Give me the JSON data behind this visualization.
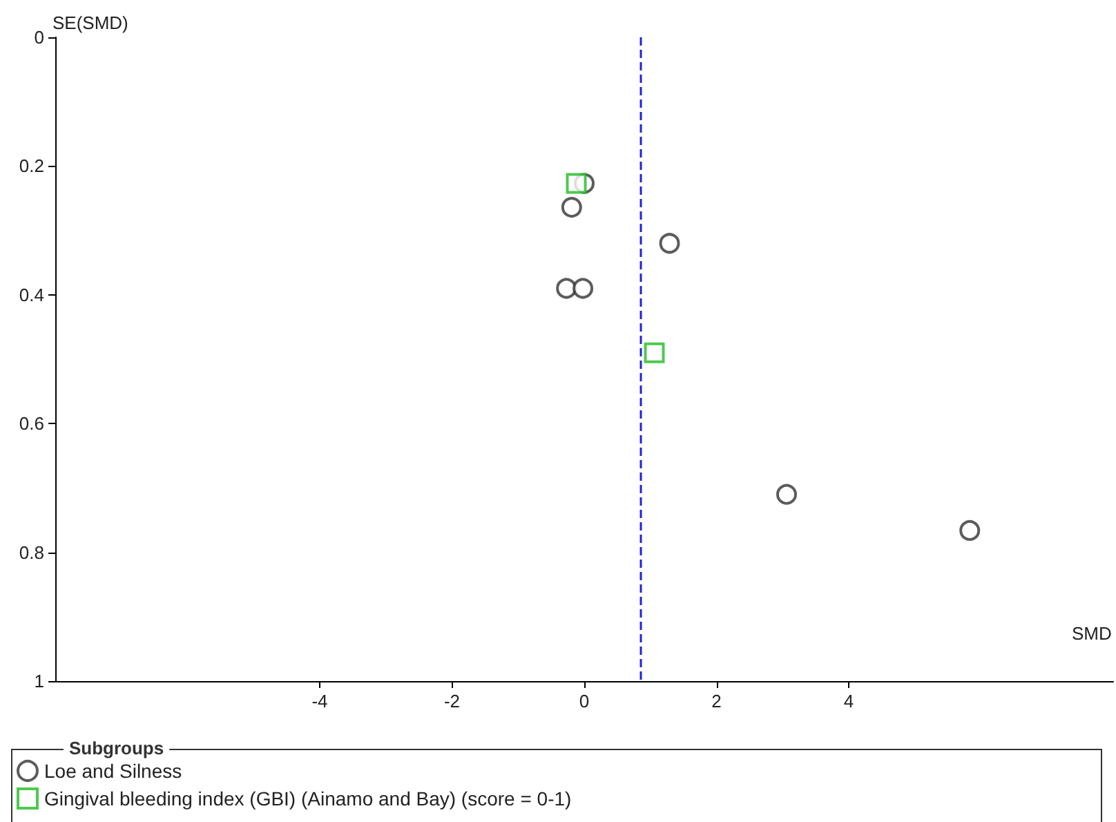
{
  "chart_data": {
    "type": "scatter",
    "xlabel": "SMD",
    "ylabel": "SE(SMD)",
    "legend_title": "Subgroups",
    "legend": "bottom",
    "xlim": [
      -8,
      8
    ],
    "xticks": [
      -4,
      -2,
      0,
      2,
      4
    ],
    "ylim": [
      1,
      0
    ],
    "yticks": [
      0,
      0.2,
      0.4,
      0.6,
      0.8,
      1
    ],
    "grid": false,
    "series": [
      {
        "name": "Loe and Silness",
        "color": "#333333",
        "marker": "circle",
        "x": [
          0,
          -0.19,
          1.29,
          -0.27,
          -0.02,
          3.06,
          5.83
        ],
        "values": [
          0.227,
          0.264,
          0.32,
          0.39,
          0.39,
          0.71,
          0.766
        ]
      },
      {
        "name": "Gingival bleeding index (GBI) (Ainamo and Bay) (score = 0-1)",
        "color": "#22bb22",
        "marker": "square",
        "x": [
          -0.12,
          1.06
        ],
        "values": [
          0.227,
          0.49
        ]
      }
    ],
    "ref_lines": [
      {
        "axis": "x",
        "value": 0.85,
        "color": "#2222dd",
        "line_style": "dashed"
      }
    ]
  }
}
